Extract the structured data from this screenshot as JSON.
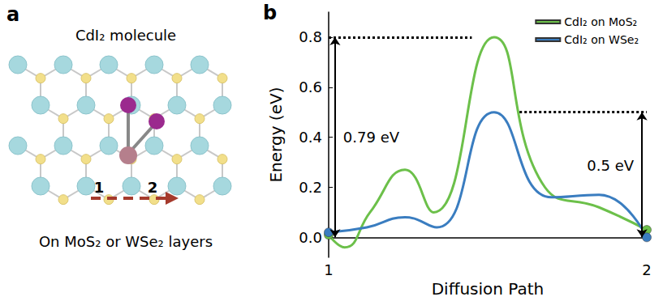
{
  "panel_a": {
    "letter": "a",
    "title": "CdI₂ molecule",
    "caption": "On MoS₂ or WSe₂ layers",
    "path_labels": [
      "1",
      "2"
    ]
  },
  "chart_data": {
    "type": "line",
    "letter": "b",
    "x_label": "Diffusion Path",
    "y_label": "Energy (eV)",
    "xlim": [
      0,
      1
    ],
    "xticks": [
      {
        "value": 0,
        "label": "1"
      },
      {
        "value": 1,
        "label": "2"
      }
    ],
    "ylim": [
      -0.08,
      0.9
    ],
    "yticks": [
      {
        "value": 0,
        "label": "0.0"
      },
      0.2,
      0.4,
      0.6,
      0.8
    ],
    "grid": false,
    "legend": "upper right",
    "marker": "circle",
    "line_style": "smooth",
    "series": [
      {
        "name": "CdI₂ on MoS₂",
        "color": "#6cc04a",
        "x": [
          0,
          0.05,
          0.13,
          0.24,
          0.33,
          0.52,
          0.68,
          0.85,
          1
        ],
        "values": [
          0.01,
          -0.04,
          0.1,
          0.27,
          0.1,
          0.8,
          0.2,
          0.12,
          0.03
        ]
      },
      {
        "name": "CdI₂ on WSe₂",
        "color": "#3a7dc0",
        "x": [
          0,
          0.12,
          0.24,
          0.34,
          0.52,
          0.7,
          0.85,
          1
        ],
        "values": [
          0.02,
          0.04,
          0.08,
          0.04,
          0.5,
          0.16,
          0.17,
          0.0
        ]
      }
    ],
    "annotations": [
      {
        "text": "0.79 eV",
        "x": 0.02,
        "y_range": [
          0,
          0.8
        ],
        "guide_x": [
          0,
          0.45
        ]
      },
      {
        "text": "0.5 eV",
        "x": 0.985,
        "y_range": [
          0,
          0.5
        ],
        "guide_x": [
          0.6,
          1
        ]
      }
    ]
  }
}
